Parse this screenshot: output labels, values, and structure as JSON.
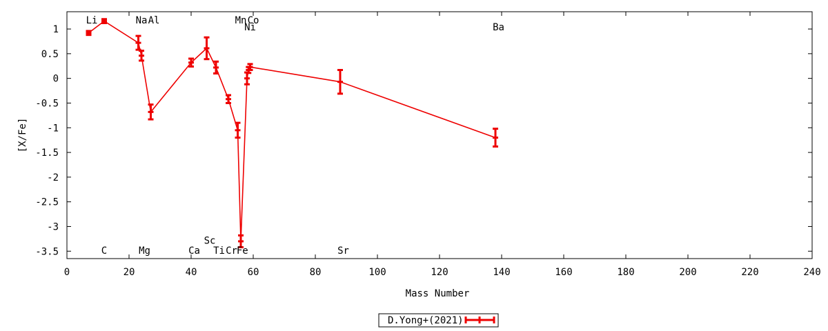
{
  "chart_data": {
    "type": "scatter",
    "title": "",
    "xlabel": "Mass Number",
    "ylabel": "[X/Fe]",
    "xlim": [
      0,
      240
    ],
    "ylim": [
      -3.65,
      1.35
    ],
    "xticks": [
      0,
      20,
      40,
      60,
      80,
      100,
      120,
      140,
      160,
      180,
      200,
      220,
      240
    ],
    "yticks": [
      1,
      0.5,
      0,
      -0.5,
      -1,
      -1.5,
      -2,
      -2.5,
      -3,
      -3.5
    ],
    "ytick_labels": [
      "1",
      "0.5",
      "0",
      "-0.5",
      "-1",
      "-1.5",
      "-2",
      "-2.5",
      "-3",
      "-3.5"
    ],
    "grid": false,
    "legend_position": "bottom-center",
    "series": [
      {
        "name": "D.Yong+(2021)",
        "color": "#ee0000",
        "points": [
          {
            "x": 7,
            "y": 0.92,
            "err": 0.04
          },
          {
            "x": 12,
            "y": 1.16,
            "err": 0.04
          },
          {
            "x": 23,
            "y": 0.72,
            "err": 0.14
          },
          {
            "x": 24,
            "y": 0.46,
            "err": 0.1
          },
          {
            "x": 27,
            "y": -0.68,
            "err": 0.15
          },
          {
            "x": 40,
            "y": 0.32,
            "err": 0.08
          },
          {
            "x": 45,
            "y": 0.61,
            "err": 0.22
          },
          {
            "x": 48,
            "y": 0.22,
            "err": 0.12
          },
          {
            "x": 52,
            "y": -0.42,
            "err": 0.08
          },
          {
            "x": 55,
            "y": -1.05,
            "err": 0.15
          },
          {
            "x": 56,
            "y": -3.3,
            "err": 0.12
          },
          {
            "x": 58,
            "y": 0.0,
            "err": 0.12
          },
          {
            "x": 58.5,
            "y": 0.17,
            "err": 0.06
          },
          {
            "x": 59,
            "y": 0.23,
            "err": 0.06
          },
          {
            "x": 88,
            "y": -0.07,
            "err": 0.24
          },
          {
            "x": 138,
            "y": -1.2,
            "err": 0.18
          }
        ]
      }
    ],
    "element_labels": [
      {
        "text": "Li",
        "x": 8,
        "y": 1.18
      },
      {
        "text": "C",
        "x": 12,
        "y": -3.48
      },
      {
        "text": "Na",
        "x": 24,
        "y": 1.18
      },
      {
        "text": "Al",
        "x": 28,
        "y": 1.18
      },
      {
        "text": "Mg",
        "x": 25,
        "y": -3.48
      },
      {
        "text": "Ca",
        "x": 41,
        "y": -3.48
      },
      {
        "text": "Sc",
        "x": 46,
        "y": -3.28
      },
      {
        "text": "Ti",
        "x": 49,
        "y": -3.48
      },
      {
        "text": "Cr",
        "x": 53,
        "y": -3.48
      },
      {
        "text": "Fe",
        "x": 56.5,
        "y": -3.48
      },
      {
        "text": "Mn",
        "x": 56,
        "y": 1.18
      },
      {
        "text": "Co",
        "x": 60,
        "y": 1.18
      },
      {
        "text": "Ni",
        "x": 59,
        "y": 1.04
      },
      {
        "text": "Sr",
        "x": 89,
        "y": -3.48
      },
      {
        "text": "Ba",
        "x": 139,
        "y": 1.04
      }
    ]
  }
}
